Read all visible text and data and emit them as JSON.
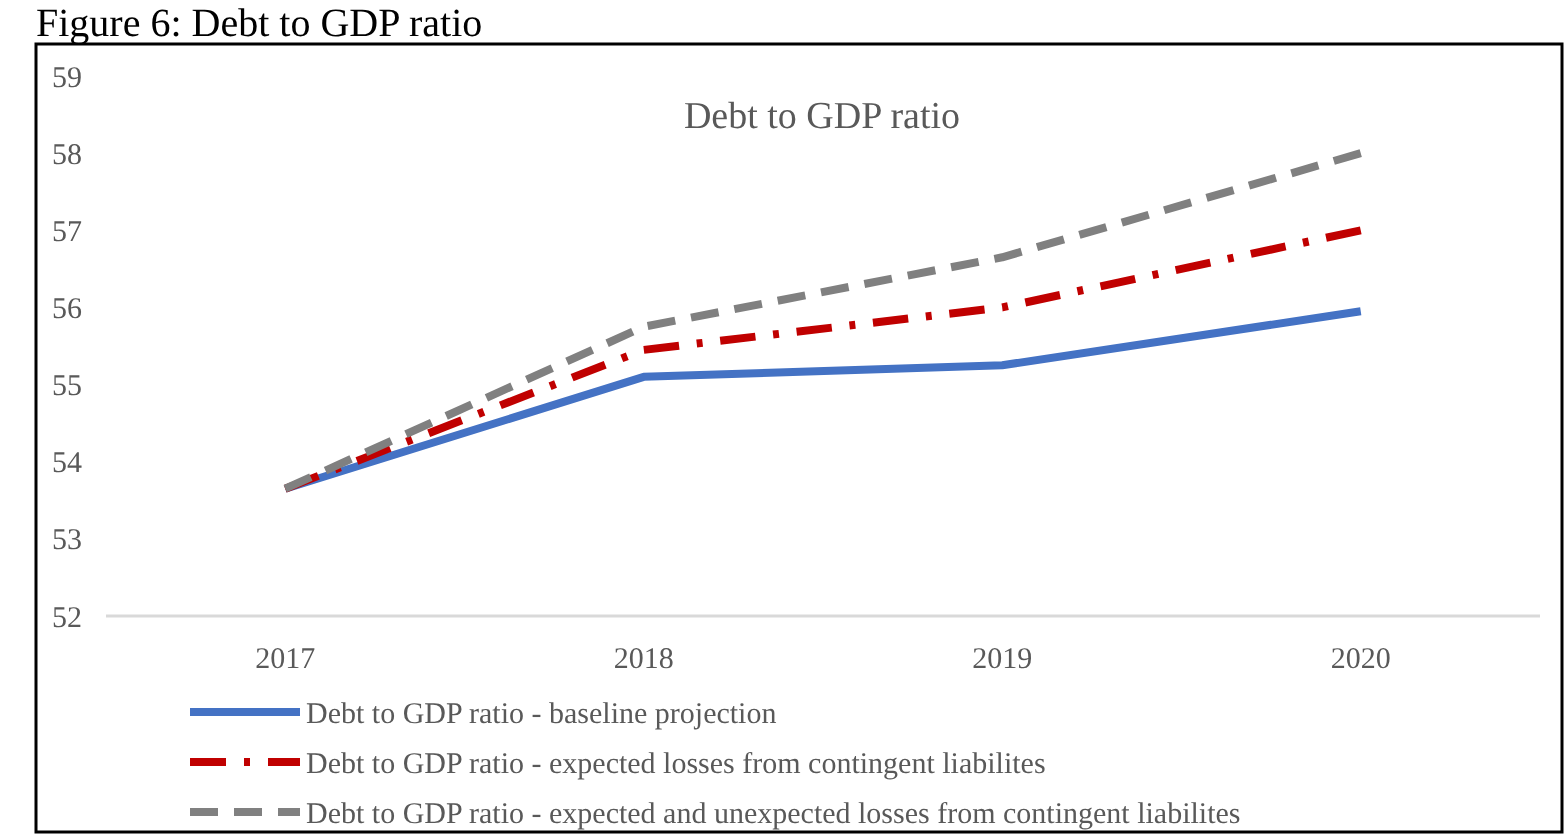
{
  "chart_data": {
    "type": "line",
    "title": "Debt to GDP ratio",
    "annotations": [
      "Figure 6: Debt to GDP ratio"
    ],
    "categories": [
      "2017",
      "2018",
      "2019",
      "2020"
    ],
    "series": [
      {
        "name": "Debt to GDP ratio - baseline projection",
        "color": "#4472c4",
        "line_style": "solid",
        "values": [
          53.65,
          55.1,
          55.25,
          55.95
        ]
      },
      {
        "name": "Debt to GDP ratio - expected losses from contingent liabilites",
        "color": "#c00000",
        "line_style": "dashdot",
        "values": [
          53.65,
          55.45,
          56.0,
          57.0
        ]
      },
      {
        "name": "Debt to GDP ratio - expected and unexpected losses from contingent liabilites",
        "color": "#808080",
        "line_style": "dashed",
        "values": [
          53.65,
          55.75,
          56.65,
          58.0
        ]
      }
    ],
    "ylim": [
      52,
      59
    ],
    "yticks": [
      52,
      53,
      54,
      55,
      56,
      57,
      58,
      59
    ],
    "grid": false,
    "legend": "bottom",
    "marker": "none"
  }
}
